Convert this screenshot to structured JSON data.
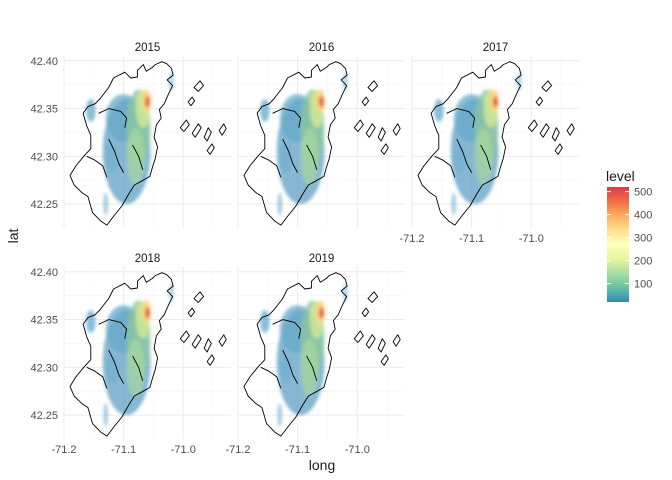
{
  "chart_data": {
    "type": "heatmap",
    "description_of_layers": "faceted 2D density map over polygon outlines",
    "facets": [
      "2015",
      "2016",
      "2017",
      "2018",
      "2019"
    ],
    "xlabel": "long",
    "ylabel": "lat",
    "xlim": [
      -71.2,
      -70.92
    ],
    "ylim": [
      42.225,
      42.405
    ],
    "x_ticks": [
      -71.2,
      -71.1,
      -71.0
    ],
    "x_tick_labels": [
      "-71.2",
      "-71.1",
      "-71.0"
    ],
    "y_ticks": [
      42.25,
      42.3,
      42.35,
      42.4
    ],
    "y_tick_labels": [
      "42.25",
      "42.30",
      "42.35",
      "42.40"
    ],
    "legend": {
      "title": "level",
      "min": 20,
      "max": 520,
      "ticks": [
        100,
        200,
        300,
        400,
        500
      ],
      "tick_labels": [
        "100",
        "200",
        "300",
        "400",
        "500"
      ],
      "colors": [
        "#3288bd",
        "#66c2a5",
        "#abdda4",
        "#e6f598",
        "#ffffbf",
        "#fee08b",
        "#fdae61",
        "#f46d43",
        "#d53e4f"
      ],
      "position": "right"
    },
    "grid": true,
    "density_hotspot": {
      "long": -71.06,
      "lat": 42.357,
      "peak_level": 500
    }
  }
}
